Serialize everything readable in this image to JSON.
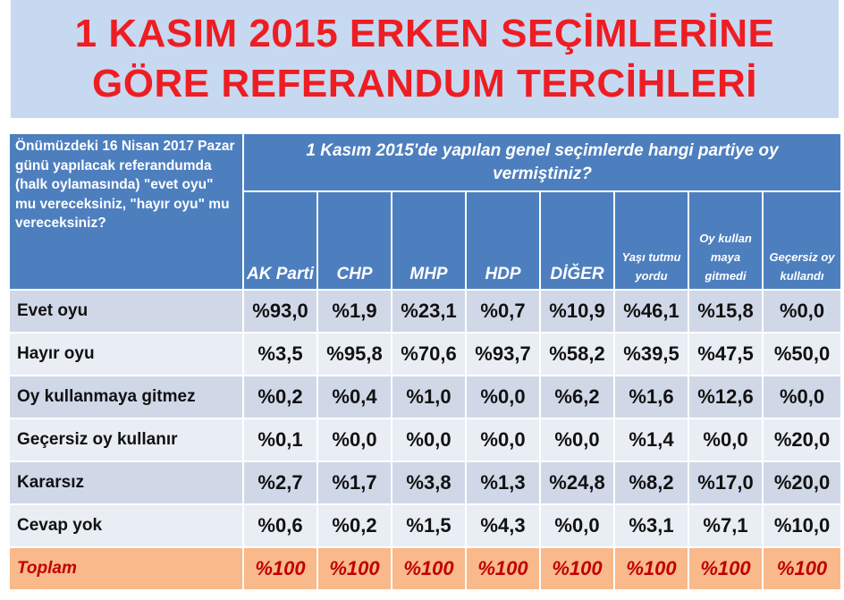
{
  "title": {
    "line1": "1 KASIM 2015 ERKEN SEÇİMLERİNE",
    "line2": "GÖRE REFERANDUM TERCİHLERİ"
  },
  "table": {
    "row_header_question": "Önümüzdeki 16 Nisan 2017 Pazar günü yapılacak referandumda (halk oylamasında) \"evet oyu\" mu vereceksiniz, \"hayır oyu\" mu vereceksiniz?",
    "column_question": "1 Kasım 2015'de yapılan genel seçimlerde hangi partiye oy vermiştiniz?",
    "columns": [
      {
        "label": "AK Parti"
      },
      {
        "label": "CHP"
      },
      {
        "label": "MHP"
      },
      {
        "label": "HDP"
      },
      {
        "label": "DİĞER"
      },
      {
        "label": "Yaşı tutmu yordu"
      },
      {
        "label": "Oy kullan maya gitmedi"
      },
      {
        "label": "Geçersiz oy kullandı"
      }
    ],
    "rows": [
      {
        "label": "Evet oyu",
        "values": [
          "%93,0",
          "%1,9",
          "%23,1",
          "%0,7",
          "%10,9",
          "%46,1",
          "%15,8",
          "%0,0"
        ]
      },
      {
        "label": "Hayır oyu",
        "values": [
          "%3,5",
          "%95,8",
          "%70,6",
          "%93,7",
          "%58,2",
          "%39,5",
          "%47,5",
          "%50,0"
        ]
      },
      {
        "label": "Oy kullanmaya gitmez",
        "values": [
          "%0,2",
          "%0,4",
          "%1,0",
          "%0,0",
          "%6,2",
          "%1,6",
          "%12,6",
          "%0,0"
        ]
      },
      {
        "label": "Geçersiz oy kullanır",
        "values": [
          "%0,1",
          "%0,0",
          "%0,0",
          "%0,0",
          "%0,0",
          "%1,4",
          "%0,0",
          "%20,0"
        ]
      },
      {
        "label": "Kararsız",
        "values": [
          "%2,7",
          "%1,7",
          "%3,8",
          "%1,3",
          "%24,8",
          "%8,2",
          "%17,0",
          "%20,0"
        ]
      },
      {
        "label": "Cevap yok",
        "values": [
          "%0,6",
          "%0,2",
          "%1,5",
          "%4,3",
          "%0,0",
          "%3,1",
          "%7,1",
          "%10,0"
        ]
      }
    ],
    "total": {
      "label": "Toplam",
      "values": [
        "%100",
        "%100",
        "%100",
        "%100",
        "%100",
        "%100",
        "%100",
        "%100"
      ]
    }
  },
  "colors": {
    "title_text": "#ee1d23",
    "title_bg": "#c6d9f1",
    "header_bg": "#4d7fbf",
    "row_dark": "#d0d8e8",
    "row_light": "#e9edf4",
    "total_bg": "#f9b98a",
    "total_text": "#c00000"
  }
}
